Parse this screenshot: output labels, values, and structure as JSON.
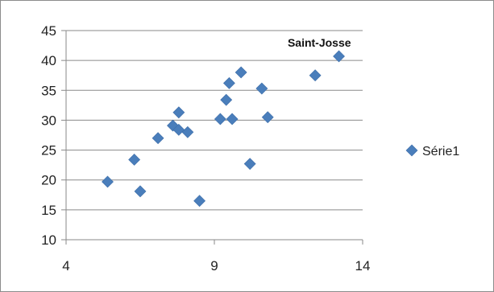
{
  "chart_data": {
    "type": "scatter",
    "xlim": [
      4,
      14
    ],
    "ylim": [
      10,
      45
    ],
    "x_ticks": [
      4,
      9,
      14
    ],
    "y_ticks": [
      10,
      15,
      20,
      25,
      30,
      35,
      40,
      45
    ],
    "grid": "horizontal",
    "legend_position": "right",
    "marker": "diamond",
    "color": "#4a7ebb",
    "series": [
      {
        "name": "Série1",
        "points": [
          [
            5.4,
            19.7
          ],
          [
            6.3,
            23.4
          ],
          [
            6.5,
            18.1
          ],
          [
            7.1,
            27.0
          ],
          [
            7.6,
            29.1
          ],
          [
            7.8,
            28.4
          ],
          [
            7.8,
            31.3
          ],
          [
            8.1,
            28.0
          ],
          [
            8.5,
            16.5
          ],
          [
            9.2,
            30.2
          ],
          [
            9.4,
            33.4
          ],
          [
            9.5,
            36.2
          ],
          [
            9.6,
            30.2
          ],
          [
            9.9,
            38.0
          ],
          [
            10.2,
            22.7
          ],
          [
            10.6,
            35.3
          ],
          [
            10.8,
            30.5
          ],
          [
            12.4,
            37.5
          ],
          [
            13.2,
            40.7
          ]
        ]
      }
    ],
    "annotations": [
      {
        "text": "Saint-Josse",
        "x": 13.2,
        "y": 40.7
      }
    ]
  }
}
